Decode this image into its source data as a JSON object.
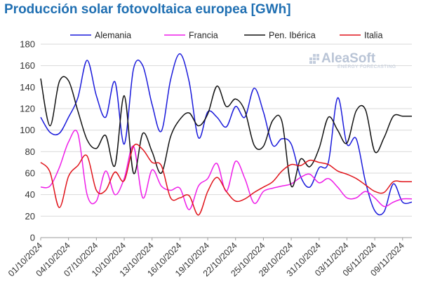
{
  "chart_data": {
    "type": "line",
    "title": "Producción solar fotovoltaica europea [GWh]",
    "xlabel": "",
    "ylabel": "",
    "ylim": [
      0,
      180
    ],
    "yticks": [
      0,
      20,
      40,
      60,
      80,
      100,
      120,
      140,
      160,
      180
    ],
    "grid": true,
    "legend_position": "top",
    "x_start": "01/10/2024",
    "x_tick_labels": [
      "01/10/2024",
      "04/10/2024",
      "07/10/2024",
      "10/10/2024",
      "13/10/2024",
      "16/10/2024",
      "19/10/2024",
      "22/10/2024",
      "25/10/2024",
      "28/10/2024",
      "31/10/2024",
      "03/11/2024",
      "06/11/2024",
      "09/11/2024"
    ],
    "x": [
      "01/10/2024",
      "02/10/2024",
      "03/10/2024",
      "04/10/2024",
      "05/10/2024",
      "06/10/2024",
      "07/10/2024",
      "08/10/2024",
      "09/10/2024",
      "10/10/2024",
      "11/10/2024",
      "12/10/2024",
      "13/10/2024",
      "14/10/2024",
      "15/10/2024",
      "16/10/2024",
      "17/10/2024",
      "18/10/2024",
      "19/10/2024",
      "20/10/2024",
      "21/10/2024",
      "22/10/2024",
      "23/10/2024",
      "24/10/2024",
      "25/10/2024",
      "26/10/2024",
      "27/10/2024",
      "28/10/2024",
      "29/10/2024",
      "30/10/2024",
      "31/10/2024",
      "01/11/2024",
      "02/11/2024",
      "03/11/2024",
      "04/11/2024",
      "05/11/2024",
      "06/11/2024",
      "07/11/2024",
      "08/11/2024",
      "09/11/2024",
      "10/11/2024"
    ],
    "series": [
      {
        "name": "Alemania",
        "color": "#1a1adb",
        "values": [
          112,
          98,
          97,
          112,
          130,
          165,
          132,
          112,
          145,
          87,
          157,
          160,
          124,
          99,
          147,
          171,
          145,
          93,
          117,
          112,
          103,
          122,
          112,
          139,
          117,
          86,
          92,
          87,
          57,
          47,
          65,
          70,
          130,
          87,
          92,
          52,
          25,
          24,
          50,
          33,
          33
        ]
      },
      {
        "name": "Francia",
        "color": "#ee1ee8",
        "values": [
          47,
          48,
          65,
          89,
          97,
          40,
          34,
          62,
          40,
          55,
          85,
          37,
          63,
          48,
          44,
          46,
          26,
          48,
          55,
          69,
          43,
          71,
          55,
          32,
          43,
          46,
          48,
          50,
          56,
          59,
          51,
          55,
          47,
          37,
          37,
          43,
          37,
          29,
          33,
          36,
          36
        ]
      },
      {
        "name": "Pen. Ibérica",
        "color": "#111111",
        "values": [
          148,
          104,
          145,
          146,
          118,
          91,
          83,
          95,
          67,
          132,
          60,
          97,
          80,
          60,
          94,
          110,
          116,
          104,
          115,
          141,
          122,
          129,
          118,
          86,
          85,
          109,
          108,
          48,
          73,
          66,
          83,
          112,
          100,
          88,
          118,
          119,
          80,
          93,
          113,
          113,
          113
        ]
      },
      {
        "name": "Italia",
        "color": "#e0141b",
        "values": [
          70,
          61,
          28,
          57,
          67,
          76,
          44,
          44,
          61,
          53,
          85,
          82,
          70,
          67,
          37,
          37,
          39,
          21,
          43,
          56,
          43,
          34,
          36,
          42,
          47,
          52,
          62,
          68,
          67,
          72,
          70,
          68,
          62,
          59,
          55,
          49,
          43,
          42,
          52,
          52,
          52
        ]
      }
    ]
  },
  "watermark": {
    "brand": "AleaSoft",
    "tagline": "ENERGY FORECASTING"
  }
}
